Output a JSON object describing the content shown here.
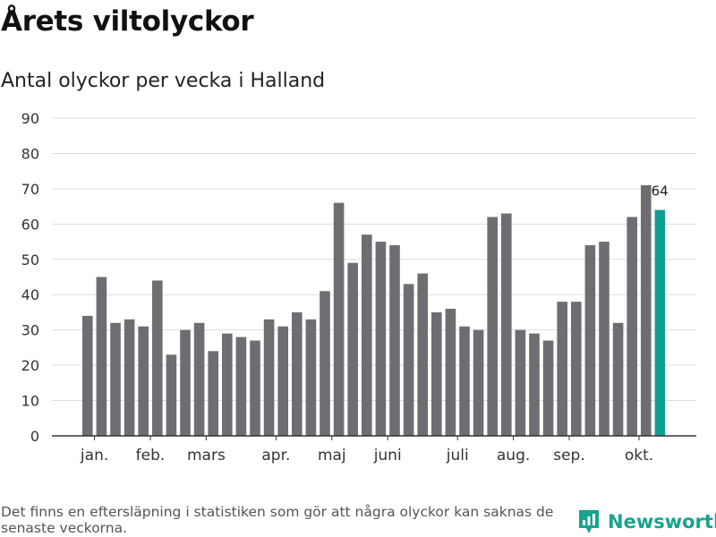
{
  "title": "Årets viltolyckor",
  "subtitle": "Antal olyckor per vecka i Halland",
  "footnote": "Det finns en eftersläpning i statistiken som gör att några olyckor kan saknas de senaste veckorna.",
  "brand": "Newsworthy",
  "colors": {
    "bar": "#6e6d72",
    "highlight": "#0d9f95",
    "grid": "#dddddd",
    "axis": "#333333",
    "brand": "#17a38f"
  },
  "chart_data": {
    "type": "bar",
    "title": "Årets viltolyckor",
    "subtitle": "Antal olyckor per vecka i Halland",
    "xlabel": "",
    "ylabel": "",
    "ylim": [
      0,
      90
    ],
    "yticks": [
      0,
      10,
      20,
      30,
      40,
      50,
      60,
      70,
      80,
      90
    ],
    "grid": true,
    "values": [
      34,
      45,
      32,
      33,
      31,
      44,
      23,
      30,
      32,
      24,
      29,
      28,
      27,
      33,
      31,
      35,
      33,
      41,
      66,
      49,
      57,
      55,
      54,
      43,
      46,
      35,
      36,
      31,
      30,
      62,
      63,
      30,
      29,
      27,
      38,
      38,
      54,
      55,
      32,
      62,
      71,
      64
    ],
    "highlight_index": 41,
    "highlight_label": "64",
    "month_labels": [
      {
        "label": "jan.",
        "bar_index": 0.5
      },
      {
        "label": "feb.",
        "bar_index": 4.5
      },
      {
        "label": "mars",
        "bar_index": 8.5
      },
      {
        "label": "apr.",
        "bar_index": 13.5
      },
      {
        "label": "maj",
        "bar_index": 17.5
      },
      {
        "label": "juni",
        "bar_index": 21.5
      },
      {
        "label": "juli",
        "bar_index": 26.5
      },
      {
        "label": "aug.",
        "bar_index": 30.5
      },
      {
        "label": "sep.",
        "bar_index": 34.5
      },
      {
        "label": "okt.",
        "bar_index": 39.5
      }
    ]
  }
}
